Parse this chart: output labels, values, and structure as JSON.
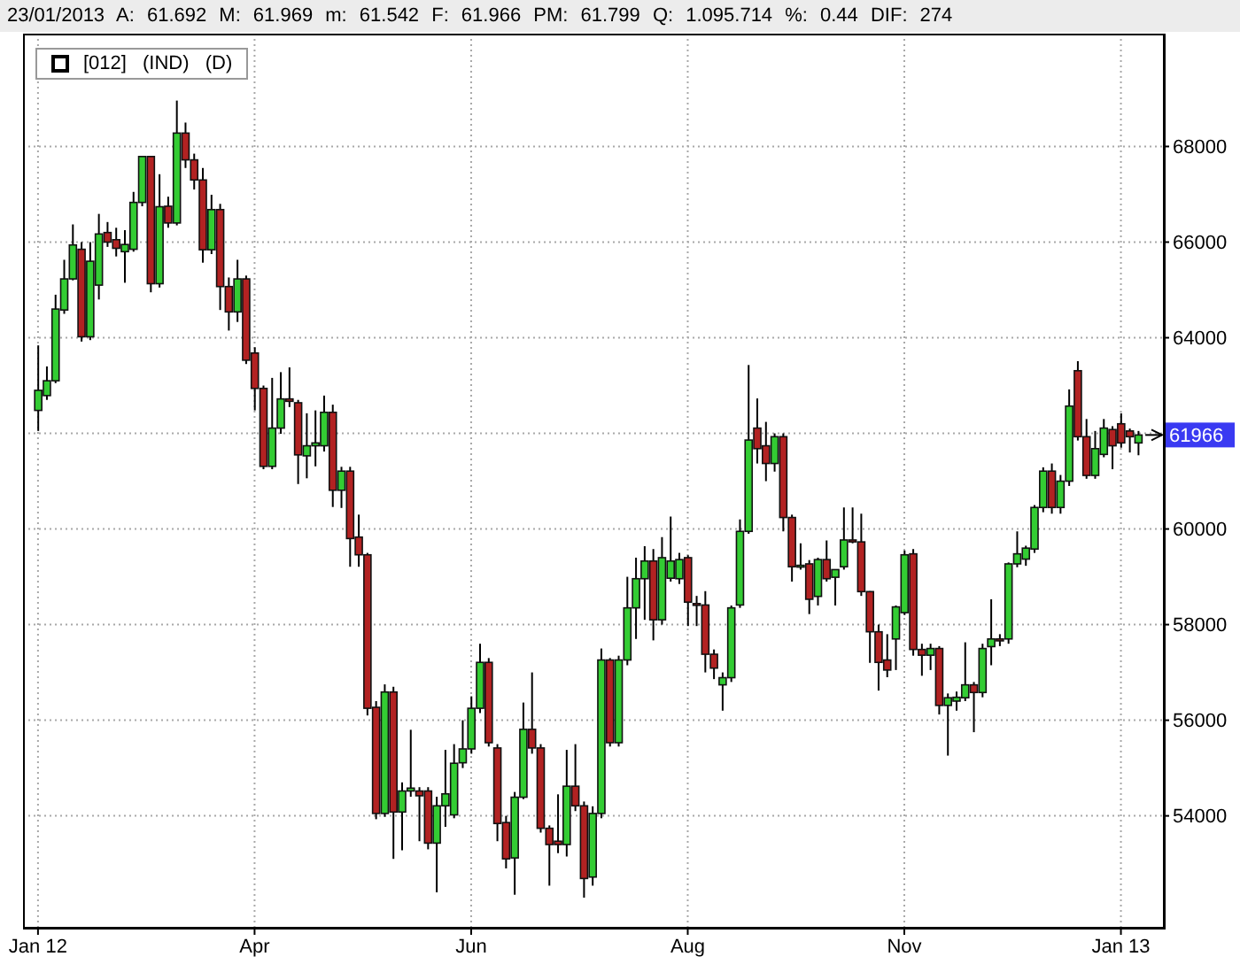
{
  "chart_data": {
    "type": "candlestick",
    "title": "23/01/2013 A: 61.692 M: 61.969 m: 61.542 F: 61.966 PM: 61.799 Q: 1.095.714 %: 0.44 DIF: 274",
    "subtitle": "[012] (IND) (D)",
    "categories": [
      "Jan 12",
      null,
      null,
      null,
      null,
      null,
      null,
      null,
      null,
      null,
      null,
      null,
      null,
      null,
      null,
      null,
      null,
      null,
      null,
      null,
      null,
      null,
      null,
      null,
      null,
      "Apr",
      null,
      null,
      null,
      null,
      null,
      null,
      null,
      null,
      null,
      null,
      null,
      null,
      null,
      null,
      null,
      null,
      null,
      null,
      null,
      null,
      null,
      null,
      null,
      null,
      "Jun",
      null,
      null,
      null,
      null,
      null,
      null,
      null,
      null,
      null,
      null,
      null,
      null,
      null,
      null,
      null,
      null,
      null,
      null,
      null,
      null,
      null,
      null,
      null,
      null,
      "Aug",
      null,
      null,
      null,
      null,
      null,
      null,
      null,
      null,
      null,
      null,
      null,
      null,
      null,
      null,
      null,
      null,
      null,
      null,
      null,
      null,
      null,
      null,
      null,
      null,
      "Nov",
      null,
      null,
      null,
      null,
      null,
      null,
      null,
      null,
      null,
      null,
      null,
      null,
      null,
      null,
      null,
      null,
      null,
      null,
      null,
      null,
      null,
      null,
      null,
      null,
      "Jan 13",
      null,
      null
    ],
    "ohlc": [
      [
        62480,
        63840,
        62050,
        62900
      ],
      [
        62790,
        63400,
        62700,
        63100
      ],
      [
        63100,
        64900,
        63050,
        64600
      ],
      [
        64580,
        65630,
        64500,
        65230
      ],
      [
        65230,
        66370,
        65200,
        65940
      ],
      [
        65850,
        66000,
        63920,
        64020
      ],
      [
        64020,
        66000,
        63950,
        65600
      ],
      [
        65100,
        66590,
        64800,
        66170
      ],
      [
        66200,
        66420,
        65900,
        66000
      ],
      [
        66050,
        66300,
        65700,
        65870
      ],
      [
        65800,
        66250,
        65150,
        65950
      ],
      [
        65850,
        67050,
        65800,
        66830
      ],
      [
        66830,
        67800,
        66750,
        67790
      ],
      [
        67790,
        67800,
        64950,
        65130
      ],
      [
        65130,
        67420,
        65050,
        66740
      ],
      [
        66750,
        66950,
        66300,
        66400
      ],
      [
        66400,
        68960,
        66350,
        68280
      ],
      [
        68280,
        68500,
        67550,
        67720
      ],
      [
        67720,
        67850,
        67100,
        67300
      ],
      [
        67300,
        67550,
        65570,
        65840
      ],
      [
        65840,
        66990,
        65750,
        66680
      ],
      [
        66680,
        66800,
        64580,
        65070
      ],
      [
        65070,
        65260,
        64150,
        64540
      ],
      [
        64540,
        65630,
        64330,
        65230
      ],
      [
        65230,
        65300,
        63450,
        63530
      ],
      [
        63680,
        63800,
        62480,
        62940
      ],
      [
        62940,
        63000,
        61250,
        61310
      ],
      [
        61310,
        63160,
        61250,
        62110
      ],
      [
        62110,
        63280,
        61990,
        62720
      ],
      [
        62720,
        63380,
        62550,
        62670
      ],
      [
        62640,
        62700,
        60940,
        61550
      ],
      [
        61530,
        62420,
        61060,
        61740
      ],
      [
        61740,
        62480,
        61310,
        61800
      ],
      [
        61740,
        62790,
        61620,
        62440
      ],
      [
        62440,
        62600,
        60460,
        60810
      ],
      [
        60810,
        61300,
        60440,
        61210
      ],
      [
        61210,
        61300,
        59210,
        59800
      ],
      [
        59830,
        60300,
        59210,
        59460
      ],
      [
        59460,
        59500,
        56100,
        56250
      ],
      [
        56270,
        56400,
        53930,
        54050
      ],
      [
        54050,
        56750,
        53980,
        56590
      ],
      [
        56590,
        56700,
        53100,
        54080
      ],
      [
        54080,
        54700,
        53280,
        54520
      ],
      [
        54520,
        55800,
        54400,
        54580
      ],
      [
        54520,
        54600,
        53470,
        54420
      ],
      [
        54520,
        54600,
        53300,
        53430
      ],
      [
        53430,
        54400,
        52400,
        54210
      ],
      [
        54210,
        55380,
        53770,
        54460
      ],
      [
        54020,
        55500,
        53950,
        55100
      ],
      [
        55110,
        56000,
        55000,
        55400
      ],
      [
        55400,
        56500,
        55300,
        56250
      ],
      [
        56250,
        57600,
        56150,
        57210
      ],
      [
        57210,
        57300,
        55450,
        55530
      ],
      [
        55420,
        55500,
        53470,
        53840
      ],
      [
        53860,
        54000,
        52900,
        53100
      ],
      [
        53120,
        54500,
        52350,
        54390
      ],
      [
        54390,
        56370,
        54350,
        55810
      ],
      [
        55810,
        57000,
        55300,
        55420
      ],
      [
        55420,
        55500,
        53650,
        53740
      ],
      [
        53740,
        53800,
        52540,
        53400
      ],
      [
        53470,
        54450,
        53220,
        53400
      ],
      [
        53400,
        55380,
        53150,
        54620
      ],
      [
        54620,
        55500,
        54100,
        54210
      ],
      [
        54210,
        54300,
        52290,
        52690
      ],
      [
        52720,
        54200,
        52540,
        54050
      ],
      [
        54050,
        57500,
        53950,
        57260
      ],
      [
        57260,
        57300,
        55450,
        55530
      ],
      [
        55530,
        57350,
        55450,
        57260
      ],
      [
        57260,
        59000,
        57150,
        58350
      ],
      [
        58350,
        59400,
        57700,
        58960
      ],
      [
        58960,
        59640,
        58100,
        59330
      ],
      [
        59330,
        59580,
        57670,
        58100
      ],
      [
        58100,
        59830,
        58000,
        59400
      ],
      [
        58970,
        60260,
        58900,
        59330
      ],
      [
        58960,
        59500,
        58850,
        59360
      ],
      [
        59400,
        59450,
        57970,
        58470
      ],
      [
        58440,
        58600,
        57970,
        58410
      ],
      [
        58410,
        58700,
        57000,
        57380
      ],
      [
        57380,
        57480,
        56860,
        57090
      ],
      [
        56740,
        57000,
        56200,
        56890
      ],
      [
        56890,
        58400,
        56800,
        58350
      ],
      [
        58410,
        60200,
        58350,
        59950
      ],
      [
        59950,
        63430,
        59900,
        61860
      ],
      [
        62110,
        62730,
        61370,
        61680
      ],
      [
        61740,
        62240,
        61000,
        61370
      ],
      [
        61370,
        62000,
        61200,
        61930
      ],
      [
        61930,
        62000,
        59950,
        60240
      ],
      [
        60240,
        60300,
        58900,
        59210
      ],
      [
        59210,
        59700,
        59150,
        59240
      ],
      [
        59270,
        59350,
        58220,
        58530
      ],
      [
        58590,
        59400,
        58400,
        59360
      ],
      [
        59360,
        59760,
        58900,
        58960
      ],
      [
        58990,
        59150,
        58400,
        59150
      ],
      [
        59210,
        60450,
        59150,
        59770
      ],
      [
        59770,
        60450,
        59700,
        59730
      ],
      [
        59730,
        60320,
        58600,
        58690
      ],
      [
        58690,
        58700,
        57200,
        57850
      ],
      [
        57850,
        58000,
        56620,
        57210
      ],
      [
        57260,
        57800,
        56900,
        57050
      ],
      [
        57700,
        58400,
        57050,
        58370
      ],
      [
        58250,
        59550,
        58200,
        59460
      ],
      [
        59480,
        59580,
        57350,
        57480
      ],
      [
        57480,
        57600,
        56930,
        57360
      ],
      [
        57360,
        57600,
        57050,
        57500
      ],
      [
        57500,
        57550,
        56120,
        56310
      ],
      [
        56310,
        56560,
        55260,
        56470
      ],
      [
        56400,
        56600,
        56200,
        56480
      ],
      [
        56470,
        57630,
        56400,
        56740
      ],
      [
        56740,
        56800,
        55750,
        56580
      ],
      [
        56580,
        57600,
        56480,
        57500
      ],
      [
        57540,
        58530,
        57150,
        57700
      ],
      [
        57700,
        57800,
        57550,
        57660
      ],
      [
        57700,
        59300,
        57600,
        59270
      ],
      [
        59270,
        59950,
        59200,
        59480
      ],
      [
        59370,
        59650,
        59230,
        59600
      ],
      [
        59580,
        60500,
        59500,
        60450
      ],
      [
        60450,
        61290,
        60350,
        61210
      ],
      [
        61210,
        61370,
        60320,
        60450
      ],
      [
        60450,
        61130,
        60320,
        61000
      ],
      [
        61000,
        62920,
        60900,
        62570
      ],
      [
        63310,
        63510,
        61850,
        61930
      ],
      [
        61930,
        62300,
        61050,
        61120
      ],
      [
        61120,
        62050,
        61050,
        61680
      ],
      [
        61560,
        62300,
        61500,
        62110
      ],
      [
        62080,
        62150,
        61250,
        61740
      ],
      [
        62200,
        62420,
        61700,
        61800
      ],
      [
        62050,
        62100,
        61600,
        61930
      ],
      [
        61800,
        62050,
        61542,
        61966
      ]
    ],
    "colors": [
      "#33cc33",
      "#33cc33",
      "#33cc33",
      "#33cc33",
      "#33cc33",
      "#b22222",
      "#33cc33",
      "#33cc33",
      "#b22222",
      "#b22222",
      "#33cc33",
      "#33cc33",
      "#33cc33",
      "#b22222",
      "#33cc33",
      "#b22222",
      "#33cc33",
      "#b22222",
      "#b22222",
      "#b22222",
      "#33cc33",
      "#b22222",
      "#b22222",
      "#33cc33",
      "#b22222",
      "#b22222",
      "#b22222",
      "#33cc33",
      "#33cc33",
      "#b22222",
      "#b22222",
      "#33cc33",
      "#33cc33",
      "#33cc33",
      "#b22222",
      "#33cc33",
      "#b22222",
      "#b22222",
      "#b22222",
      "#b22222",
      "#33cc33",
      "#b22222",
      "#33cc33",
      "#33cc33",
      "#b22222",
      "#b22222",
      "#33cc33",
      "#33cc33",
      "#33cc33",
      "#33cc33",
      "#33cc33",
      "#33cc33",
      "#b22222",
      "#b22222",
      "#b22222",
      "#33cc33",
      "#33cc33",
      "#b22222",
      "#b22222",
      "#b22222",
      "#b22222",
      "#33cc33",
      "#b22222",
      "#b22222",
      "#33cc33",
      "#33cc33",
      "#b22222",
      "#33cc33",
      "#33cc33",
      "#33cc33",
      "#33cc33",
      "#b22222",
      "#33cc33",
      "#33cc33",
      "#33cc33",
      "#b22222",
      "#b22222",
      "#b22222",
      "#b22222",
      "#33cc33",
      "#33cc33",
      "#33cc33",
      "#33cc33",
      "#b22222",
      "#b22222",
      "#33cc33",
      "#b22222",
      "#b22222",
      "#33cc33",
      "#b22222",
      "#33cc33",
      "#b22222",
      "#33cc33",
      "#33cc33",
      "#b22222",
      "#b22222",
      "#b22222",
      "#b22222",
      "#b22222",
      "#33cc33",
      "#33cc33",
      "#b22222",
      "#b22222",
      "#33cc33",
      "#b22222",
      "#33cc33",
      "#33cc33",
      "#33cc33",
      "#b22222",
      "#33cc33",
      "#33cc33",
      "#b22222",
      "#33cc33",
      "#33cc33",
      "#33cc33",
      "#33cc33",
      "#33cc33",
      "#b22222",
      "#33cc33",
      "#33cc33",
      "#b22222",
      "#b22222",
      "#33cc33",
      "#33cc33",
      "#b22222",
      "#b22222",
      "#b22222",
      "#33cc33"
    ],
    "ylim": [
      51660,
      70360
    ],
    "yticks": [
      54000,
      56000,
      58000,
      60000,
      {
        "value": 62000,
        "label": null
      },
      64000,
      66000,
      68000
    ],
    "grid": true,
    "annotations": [
      "61966"
    ]
  }
}
